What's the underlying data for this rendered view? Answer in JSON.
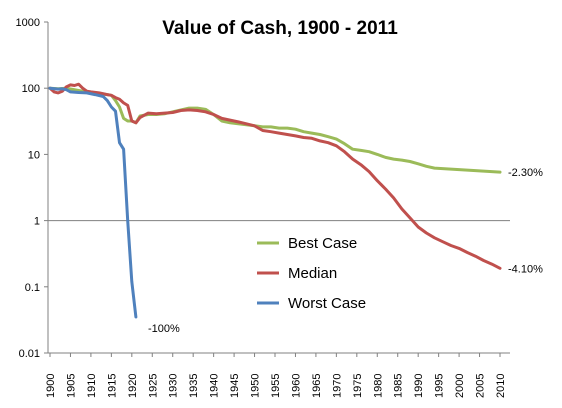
{
  "chart_data": {
    "type": "line",
    "title": "Value of Cash, 1900 - 2011",
    "y_scale": "log",
    "ylim": [
      0.01,
      1000
    ],
    "xlim": [
      1900,
      2011
    ],
    "y_ticks": [
      {
        "value": 1000,
        "label": "1000"
      },
      {
        "value": 100,
        "label": "100"
      },
      {
        "value": 10,
        "label": "10"
      },
      {
        "value": 1,
        "label": "1"
      },
      {
        "value": 0.1,
        "label": "0.1"
      },
      {
        "value": 0.01,
        "label": "0.01"
      }
    ],
    "x_ticks": [
      "1900",
      "1905",
      "1910",
      "1915",
      "1920",
      "1925",
      "1930",
      "1935",
      "1940",
      "1945",
      "1950",
      "1955",
      "1960",
      "1965",
      "1970",
      "1975",
      "1980",
      "1985",
      "1990",
      "1995",
      "2000",
      "2005",
      "2010"
    ],
    "reference_line": 1,
    "legend_position": "center",
    "series": [
      {
        "name": "Best Case",
        "color": "#9bbb59",
        "end_label": "-2.30%",
        "points": [
          [
            1900,
            100
          ],
          [
            1902,
            98
          ],
          [
            1904,
            100
          ],
          [
            1906,
            95
          ],
          [
            1908,
            90
          ],
          [
            1910,
            85
          ],
          [
            1912,
            83
          ],
          [
            1914,
            80
          ],
          [
            1915,
            78
          ],
          [
            1916,
            65
          ],
          [
            1917,
            52
          ],
          [
            1918,
            35
          ],
          [
            1919,
            32
          ],
          [
            1920,
            32
          ],
          [
            1921,
            30
          ],
          [
            1922,
            38
          ],
          [
            1924,
            40
          ],
          [
            1926,
            40
          ],
          [
            1928,
            41
          ],
          [
            1930,
            44
          ],
          [
            1932,
            47
          ],
          [
            1934,
            50
          ],
          [
            1936,
            50
          ],
          [
            1938,
            48
          ],
          [
            1940,
            40
          ],
          [
            1942,
            32
          ],
          [
            1944,
            30
          ],
          [
            1946,
            29
          ],
          [
            1948,
            28
          ],
          [
            1950,
            27
          ],
          [
            1952,
            26
          ],
          [
            1954,
            26
          ],
          [
            1956,
            25
          ],
          [
            1958,
            25
          ],
          [
            1960,
            24
          ],
          [
            1962,
            22
          ],
          [
            1964,
            21
          ],
          [
            1966,
            20
          ],
          [
            1968,
            18.5
          ],
          [
            1970,
            17
          ],
          [
            1972,
            14.5
          ],
          [
            1974,
            12
          ],
          [
            1976,
            11.5
          ],
          [
            1978,
            11
          ],
          [
            1980,
            10
          ],
          [
            1982,
            9
          ],
          [
            1984,
            8.5
          ],
          [
            1986,
            8.2
          ],
          [
            1988,
            7.8
          ],
          [
            1990,
            7.2
          ],
          [
            1992,
            6.6
          ],
          [
            1994,
            6.2
          ],
          [
            1996,
            6.1
          ],
          [
            1998,
            6.0
          ],
          [
            2000,
            5.9
          ],
          [
            2002,
            5.8
          ],
          [
            2004,
            5.7
          ],
          [
            2006,
            5.6
          ],
          [
            2008,
            5.5
          ],
          [
            2010,
            5.4
          ]
        ]
      },
      {
        "name": "Median",
        "color": "#c0504d",
        "end_label": "-4.10%",
        "points": [
          [
            1900,
            100
          ],
          [
            1901,
            88
          ],
          [
            1902,
            85
          ],
          [
            1903,
            90
          ],
          [
            1904,
            105
          ],
          [
            1905,
            112
          ],
          [
            1906,
            110
          ],
          [
            1907,
            115
          ],
          [
            1908,
            100
          ],
          [
            1909,
            90
          ],
          [
            1910,
            88
          ],
          [
            1912,
            85
          ],
          [
            1914,
            80
          ],
          [
            1915,
            78
          ],
          [
            1916,
            72
          ],
          [
            1917,
            68
          ],
          [
            1918,
            60
          ],
          [
            1919,
            55
          ],
          [
            1920,
            32
          ],
          [
            1921,
            30
          ],
          [
            1922,
            36
          ],
          [
            1924,
            42
          ],
          [
            1926,
            41
          ],
          [
            1928,
            42
          ],
          [
            1930,
            43
          ],
          [
            1932,
            46
          ],
          [
            1934,
            47
          ],
          [
            1936,
            46
          ],
          [
            1938,
            44
          ],
          [
            1940,
            40
          ],
          [
            1942,
            35
          ],
          [
            1944,
            33
          ],
          [
            1946,
            31
          ],
          [
            1948,
            29
          ],
          [
            1950,
            27
          ],
          [
            1952,
            23
          ],
          [
            1954,
            22
          ],
          [
            1956,
            21
          ],
          [
            1958,
            20
          ],
          [
            1960,
            19
          ],
          [
            1962,
            18
          ],
          [
            1964,
            17.5
          ],
          [
            1966,
            16
          ],
          [
            1968,
            15
          ],
          [
            1970,
            13.5
          ],
          [
            1972,
            11
          ],
          [
            1974,
            8.5
          ],
          [
            1976,
            7
          ],
          [
            1978,
            5.5
          ],
          [
            1980,
            4
          ],
          [
            1982,
            3
          ],
          [
            1984,
            2.2
          ],
          [
            1986,
            1.5
          ],
          [
            1988,
            1.1
          ],
          [
            1990,
            0.8
          ],
          [
            1992,
            0.65
          ],
          [
            1994,
            0.55
          ],
          [
            1996,
            0.48
          ],
          [
            1998,
            0.42
          ],
          [
            2000,
            0.38
          ],
          [
            2002,
            0.33
          ],
          [
            2004,
            0.29
          ],
          [
            2006,
            0.25
          ],
          [
            2008,
            0.22
          ],
          [
            2010,
            0.19
          ]
        ]
      },
      {
        "name": "Worst Case",
        "color": "#4f81bd",
        "end_label": "-100%",
        "points": [
          [
            1900,
            100
          ],
          [
            1902,
            97
          ],
          [
            1903,
            98
          ],
          [
            1904,
            95
          ],
          [
            1905,
            88
          ],
          [
            1907,
            86
          ],
          [
            1909,
            85
          ],
          [
            1911,
            80
          ],
          [
            1913,
            75
          ],
          [
            1914,
            65
          ],
          [
            1915,
            52
          ],
          [
            1916,
            45
          ],
          [
            1917,
            15
          ],
          [
            1918,
            12
          ],
          [
            1919,
            1
          ],
          [
            1920,
            0.12
          ],
          [
            1921,
            0.035
          ]
        ]
      }
    ]
  }
}
